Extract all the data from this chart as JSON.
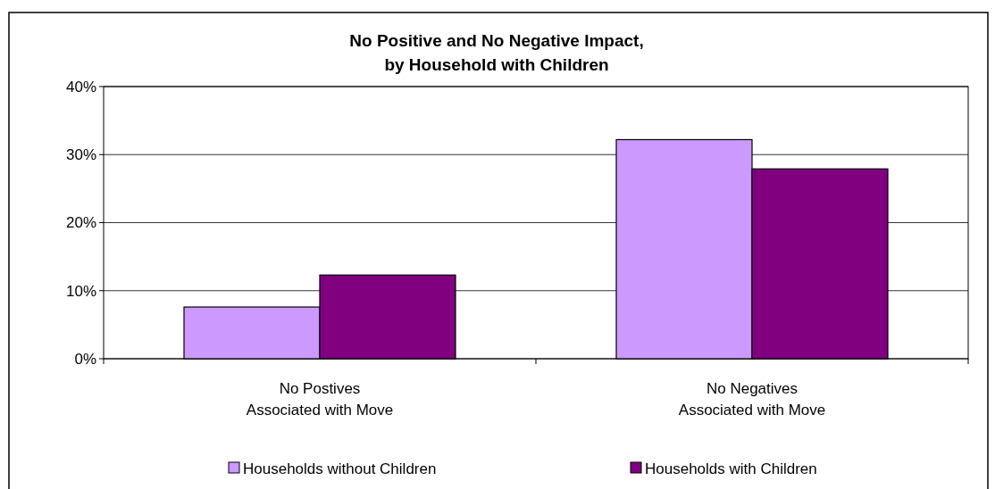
{
  "chart_data": {
    "type": "bar",
    "title": "No Positive and No Negative Impact,\nby Household with Children",
    "categories": [
      "No Postives\nAssociated with Move",
      "No Negatives\nAssociated with Move"
    ],
    "series": [
      {
        "name": "Households without Children",
        "color": "#cc99ff",
        "values": [
          7.6,
          32.2
        ]
      },
      {
        "name": "Households with Children",
        "color": "#800080",
        "values": [
          12.3,
          27.9
        ]
      }
    ],
    "ylim": [
      0,
      40
    ],
    "yticks": [
      {
        "value": 0,
        "label": "0%"
      },
      {
        "value": 10,
        "label": "10%"
      },
      {
        "value": 20,
        "label": "20%"
      },
      {
        "value": 30,
        "label": "30%"
      },
      {
        "value": 40,
        "label": "40%"
      }
    ],
    "grid": "y",
    "legend": "bottom"
  }
}
